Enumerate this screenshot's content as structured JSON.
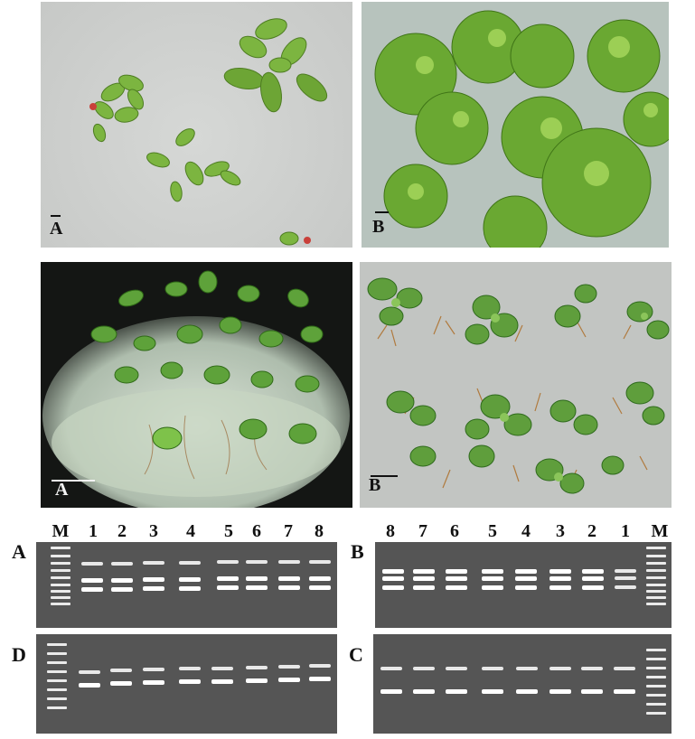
{
  "photos": [
    {
      "id": "top-left",
      "label": "A"
    },
    {
      "id": "top-right",
      "label": "B"
    },
    {
      "id": "mid-left",
      "label": "A"
    },
    {
      "id": "mid-right",
      "label": "B"
    }
  ],
  "gels": {
    "marker": "M",
    "lanes_ltr": [
      "M",
      "1",
      "2",
      "3",
      "4",
      "5",
      "6",
      "7",
      "8"
    ],
    "lanes_rtl": [
      "8",
      "7",
      "6",
      "5",
      "4",
      "3",
      "2",
      "1",
      "M"
    ],
    "panel_letters": {
      "a": "A",
      "b": "B",
      "c": "C",
      "d": "D"
    }
  },
  "colors": {
    "gel_bg": "#555555",
    "band": "#f0f0f0",
    "leaf_green": "#5f9e2c",
    "agar": "#c9cbc9"
  }
}
